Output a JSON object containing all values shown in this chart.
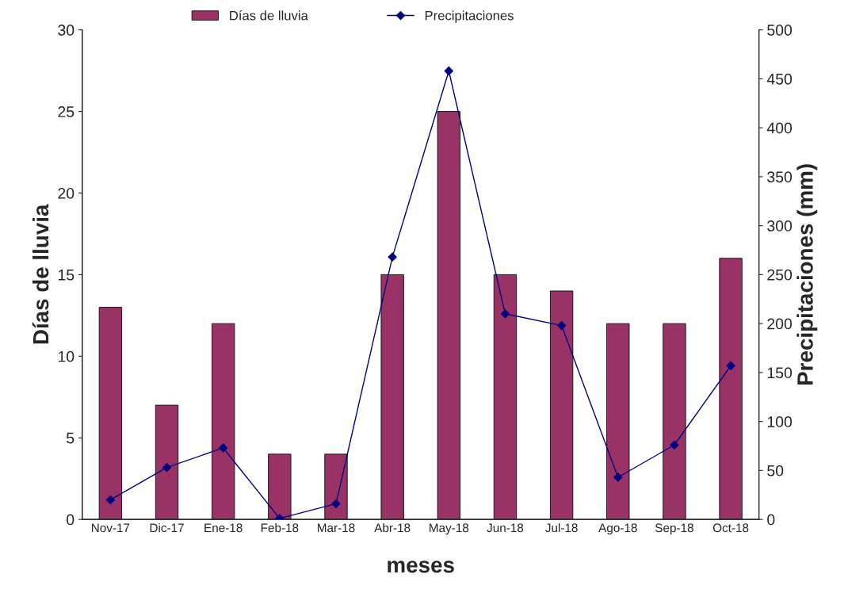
{
  "chart_data": {
    "type": "bar",
    "xlabel": "meses",
    "ylabel": "Días de lluvia",
    "y2label": "Precipitaciones (mm)",
    "categories": [
      "Nov-17",
      "Dic-17",
      "Ene-18",
      "Feb-18",
      "Mar-18",
      "Abr-18",
      "May-18",
      "Jun-18",
      "Jul-18",
      "Ago-18",
      "Sep-18",
      "Oct-18"
    ],
    "series": [
      {
        "name": "Días de lluvia",
        "color": "#993366",
        "values": [
          13,
          7,
          12,
          4,
          4,
          15,
          25,
          15,
          14,
          12,
          12,
          16
        ]
      },
      {
        "name": "Precipitaciones",
        "type": "line",
        "axis": "y2",
        "color": "#000080",
        "marker": "diamond",
        "values": [
          20,
          53,
          73,
          1,
          16,
          268,
          458,
          210,
          198,
          43,
          76,
          157
        ]
      }
    ],
    "ylim": [
      0,
      30
    ],
    "yticks": [
      0,
      5,
      10,
      15,
      20,
      25,
      30
    ],
    "y2lim": [
      0,
      500
    ],
    "y2ticks": [
      0,
      50,
      100,
      150,
      200,
      250,
      300,
      350,
      400,
      450,
      500
    ],
    "grid": false,
    "legend": "top"
  }
}
